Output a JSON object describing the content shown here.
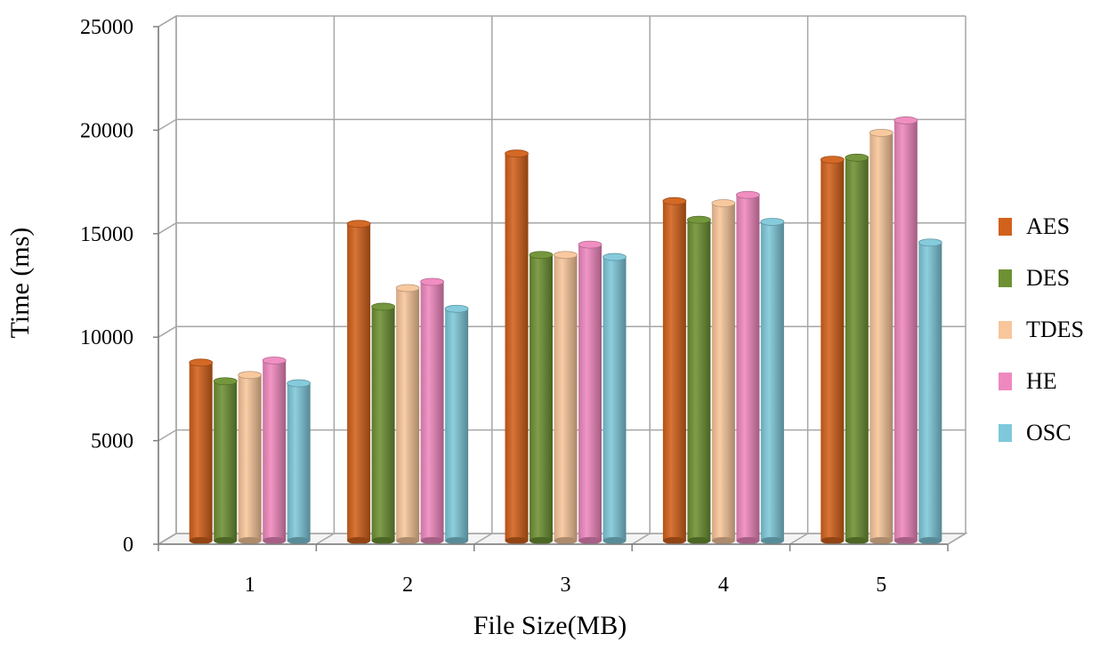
{
  "chart_data": {
    "type": "bar",
    "title": "",
    "xlabel": "File Size(MB)",
    "ylabel": "Time (ms)",
    "categories": [
      "1",
      "2",
      "3",
      "4",
      "5"
    ],
    "y_ticks": [
      "0",
      "5000",
      "10000",
      "15000",
      "20000",
      "25000"
    ],
    "ylim": [
      0,
      25000
    ],
    "grid": true,
    "legend_position": "right",
    "series": [
      {
        "name": "AES",
        "color": "#d2611b",
        "values": [
          8600,
          15300,
          18700,
          16400,
          18400
        ]
      },
      {
        "name": "DES",
        "color": "#6d9133",
        "values": [
          7700,
          11300,
          13800,
          15500,
          18500
        ]
      },
      {
        "name": "TDES",
        "color": "#f8c69a",
        "values": [
          8000,
          12200,
          13800,
          16300,
          19700
        ]
      },
      {
        "name": "HE",
        "color": "#ef88be",
        "values": [
          8700,
          12500,
          14300,
          16700,
          20300
        ]
      },
      {
        "name": "OSC",
        "color": "#7fc8da",
        "values": [
          7600,
          11200,
          13700,
          15400,
          14400
        ]
      }
    ]
  }
}
